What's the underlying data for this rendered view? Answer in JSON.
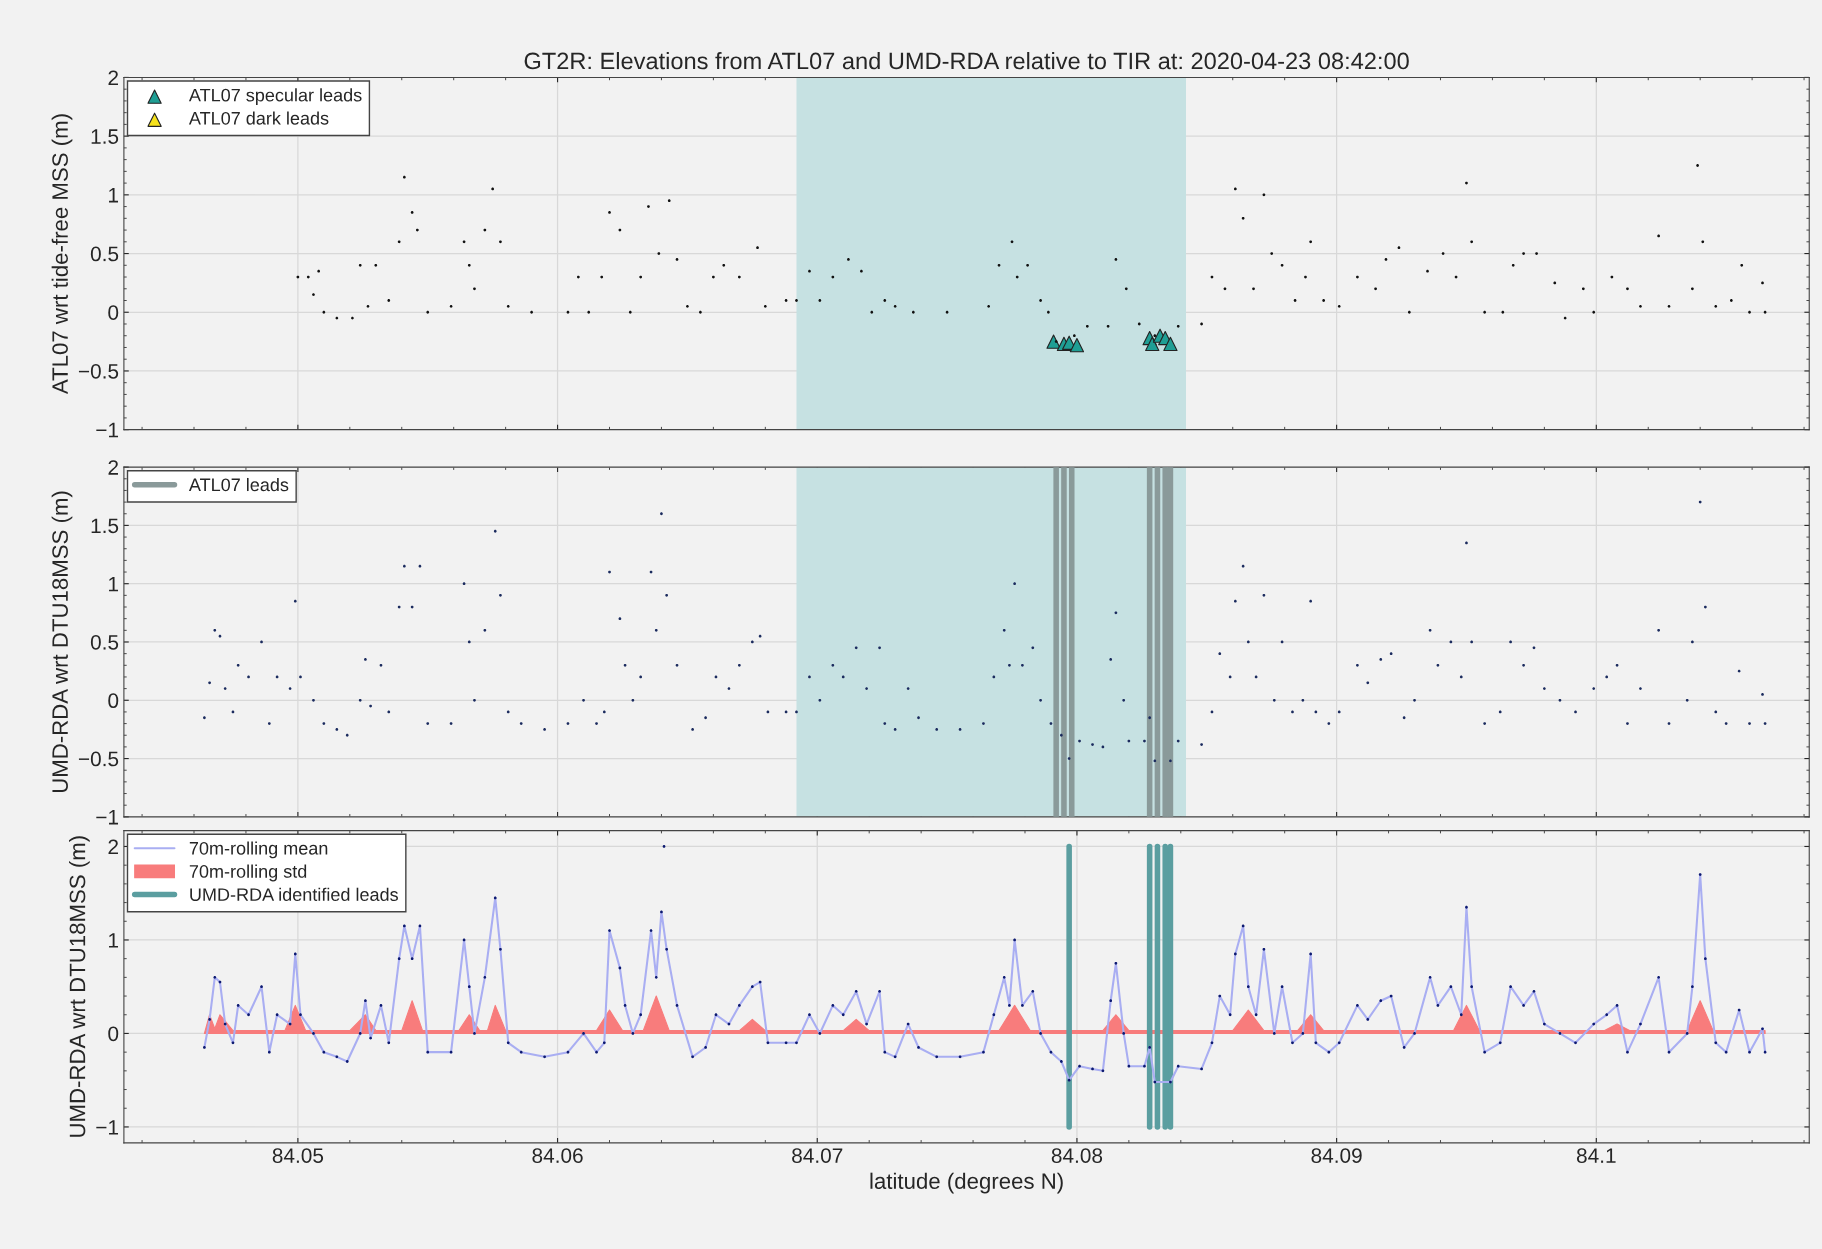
{
  "chart_data": [
    {
      "type": "scatter",
      "title": "GT2R: Elevations from ATL07 and UMD-RDA relative to TIR at: 2020-04-23 08:42:00",
      "ylabel": "ATL07 wrt tide-free MSS (m)",
      "xlim": [
        84.0433,
        84.1082
      ],
      "xticks": [
        84.05,
        84.06,
        84.07,
        84.08,
        84.09,
        84.1
      ],
      "ylim": [
        -1,
        2
      ],
      "yticks": [
        -1,
        -0.5,
        0,
        0.5,
        1,
        1.5,
        2
      ],
      "tick_labels": "y",
      "grid": true,
      "legend": "top left",
      "bands": [
        {
          "axis": "x",
          "from": 84.0692,
          "to": 84.0842,
          "color": "#c6e1e2"
        }
      ],
      "series": [
        {
          "marker": "circle",
          "color": "#111111",
          "x": [
            84.05,
            84.0504,
            84.0506,
            84.0508,
            84.051,
            84.0515,
            84.0521,
            84.0524,
            84.0527,
            84.053,
            84.0535,
            84.0539,
            84.0541,
            84.0544,
            84.0546,
            84.055,
            84.0559,
            84.0564,
            84.0566,
            84.0568,
            84.0572,
            84.0575,
            84.0578,
            84.0581,
            84.059,
            84.0604,
            84.0608,
            84.0612,
            84.0617,
            84.062,
            84.0624,
            84.0628,
            84.0632,
            84.0635,
            84.0639,
            84.0643,
            84.0646,
            84.065,
            84.0655,
            84.066,
            84.0664,
            84.067,
            84.0677,
            84.068,
            84.0688,
            84.0692,
            84.0697,
            84.0701,
            84.0706,
            84.0712,
            84.0717,
            84.0721,
            84.0726,
            84.073,
            84.0737,
            84.075,
            84.0766,
            84.077,
            84.0775,
            84.0777,
            84.0781,
            84.0786,
            84.0789,
            84.0792,
            84.0799,
            84.0804,
            84.0812,
            84.0815,
            84.0819,
            84.0824,
            84.083,
            84.0839,
            84.0848,
            84.0852,
            84.0857,
            84.0861,
            84.0864,
            84.0868,
            84.0872,
            84.0875,
            84.0879,
            84.0884,
            84.0888,
            84.089,
            84.0895,
            84.0901,
            84.0908,
            84.0915,
            84.0919,
            84.0924,
            84.0928,
            84.0935,
            84.0941,
            84.0946,
            84.095,
            84.0952,
            84.0957,
            84.0964,
            84.0968,
            84.0972,
            84.0977,
            84.0984,
            84.0988,
            84.0995,
            84.0999,
            84.1006,
            84.1012,
            84.1017,
            84.1024,
            84.1028,
            84.1037,
            84.1039,
            84.1041,
            84.1046,
            84.1052,
            84.1056,
            84.1059,
            84.1064,
            84.1065
          ],
          "values": [
            0.3,
            0.3,
            0.15,
            0.35,
            0.0,
            -0.05,
            -0.05,
            0.4,
            0.05,
            0.4,
            0.1,
            0.6,
            1.15,
            0.85,
            0.7,
            0.0,
            0.05,
            0.6,
            0.4,
            0.2,
            0.7,
            1.05,
            0.6,
            0.05,
            0.0,
            0.0,
            0.3,
            0.0,
            0.3,
            0.85,
            0.7,
            0.0,
            0.3,
            0.9,
            0.5,
            0.95,
            0.45,
            0.05,
            0.0,
            0.3,
            0.4,
            0.3,
            0.55,
            0.05,
            0.1,
            0.1,
            0.35,
            0.1,
            0.3,
            0.45,
            0.35,
            0.0,
            0.1,
            0.05,
            0.0,
            0.0,
            0.05,
            0.4,
            0.6,
            0.3,
            0.4,
            0.1,
            0.0,
            -0.25,
            -0.2,
            -0.12,
            -0.12,
            0.45,
            0.2,
            -0.1,
            -0.2,
            -0.12,
            -0.1,
            0.3,
            0.2,
            1.05,
            0.8,
            0.2,
            1.0,
            0.5,
            0.4,
            0.1,
            0.3,
            0.6,
            0.1,
            0.05,
            0.3,
            0.2,
            0.45,
            0.55,
            0.0,
            0.35,
            0.5,
            0.3,
            1.1,
            0.6,
            0.0,
            0.0,
            0.4,
            0.5,
            0.5,
            0.25,
            -0.05,
            0.2,
            0.0,
            0.3,
            0.2,
            0.05,
            0.65,
            0.05,
            0.2,
            1.25,
            0.6,
            0.05,
            0.1,
            0.4,
            0.0,
            0.25,
            0.0
          ]
        },
        {
          "marker": "triangle",
          "name": "ATL07 specular leads",
          "color": "#1f9e94",
          "x": [
            84.0791,
            84.0795,
            84.0797,
            84.08,
            84.0828,
            84.0829,
            84.0832,
            84.0834,
            84.0836
          ],
          "values": [
            -0.25,
            -0.27,
            -0.26,
            -0.28,
            -0.22,
            -0.27,
            -0.2,
            -0.22,
            -0.27
          ]
        },
        {
          "marker": "triangle",
          "name": "ATL07 dark leads",
          "color": "#f5e11a"
        }
      ]
    },
    {
      "type": "scatter",
      "ylabel": "UMD-RDA wrt DTU18MSS (m)",
      "xlim": [
        84.0433,
        84.1082
      ],
      "xticks": [
        84.05,
        84.06,
        84.07,
        84.08,
        84.09,
        84.1
      ],
      "ylim": [
        -1,
        2
      ],
      "yticks": [
        -1,
        -0.5,
        0,
        0.5,
        1,
        1.5,
        2
      ],
      "tick_labels": "y",
      "grid": true,
      "legend": "top left",
      "bands": [
        {
          "axis": "x",
          "from": 84.0692,
          "to": 84.0842,
          "color": "#c6e1e2"
        }
      ],
      "series": [
        {
          "type": "line",
          "name": "ATL07 leads",
          "color": "#8a9a9a",
          "line_style": "solid",
          "x": [
            84.0792,
            84.0792
          ],
          "values": [
            -1,
            2
          ]
        },
        {
          "type": "line",
          "color": "#8a9a9a",
          "line_style": "solid",
          "x": [
            84.0795,
            84.0795
          ],
          "values": [
            -1,
            2
          ]
        },
        {
          "type": "line",
          "color": "#8a9a9a",
          "line_style": "solid",
          "x": [
            84.0798,
            84.0798
          ],
          "values": [
            -1,
            2
          ]
        },
        {
          "type": "line",
          "color": "#8a9a9a",
          "line_style": "solid",
          "x": [
            84.0828,
            84.0828
          ],
          "values": [
            -1,
            2
          ]
        },
        {
          "type": "line",
          "color": "#8a9a9a",
          "line_style": "solid",
          "x": [
            84.0831,
            84.0831
          ],
          "values": [
            -1,
            2
          ]
        },
        {
          "type": "line",
          "color": "#8a9a9a",
          "line_style": "solid",
          "x": [
            84.0834,
            84.0834
          ],
          "values": [
            -1,
            2
          ]
        },
        {
          "type": "line",
          "color": "#8a9a9a",
          "line_style": "solid",
          "x": [
            84.0836,
            84.0836
          ],
          "values": [
            -1,
            2
          ]
        },
        {
          "marker": "circle",
          "color": "#1b2b5e",
          "x": [
            84.0464,
            84.0466,
            84.0468,
            84.047,
            84.0472,
            84.0475,
            84.0477,
            84.0481,
            84.0486,
            84.0489,
            84.0492,
            84.0497,
            84.0499,
            84.0501,
            84.0506,
            84.051,
            84.0515,
            84.0519,
            84.0524,
            84.0526,
            84.0528,
            84.0532,
            84.0535,
            84.0539,
            84.0541,
            84.0544,
            84.0547,
            84.055,
            84.0559,
            84.0564,
            84.0566,
            84.0568,
            84.0572,
            84.0576,
            84.0578,
            84.0581,
            84.0586,
            84.0595,
            84.0604,
            84.061,
            84.0615,
            84.0618,
            84.062,
            84.0624,
            84.0626,
            84.0629,
            84.0632,
            84.0636,
            84.0638,
            84.064,
            84.0642,
            84.0646,
            84.0652,
            84.0657,
            84.0661,
            84.0666,
            84.067,
            84.0675,
            84.0678,
            84.0681,
            84.0688,
            84.0692,
            84.0697,
            84.0701,
            84.0706,
            84.071,
            84.0715,
            84.0719,
            84.0724,
            84.0726,
            84.073,
            84.0735,
            84.0739,
            84.0746,
            84.0755,
            84.0764,
            84.0768,
            84.0772,
            84.0774,
            84.0776,
            84.0779,
            84.0783,
            84.0786,
            84.079,
            84.0794,
            84.0797,
            84.0801,
            84.0806,
            84.081,
            84.0813,
            84.0815,
            84.0818,
            84.082,
            84.0826,
            84.0828,
            84.083,
            84.0836,
            84.0839,
            84.0848,
            84.0852,
            84.0855,
            84.0859,
            84.0861,
            84.0864,
            84.0866,
            84.0869,
            84.0872,
            84.0876,
            84.0879,
            84.0883,
            84.0887,
            84.089,
            84.0892,
            84.0897,
            84.0901,
            84.0908,
            84.0912,
            84.0917,
            84.0921,
            84.0926,
            84.093,
            84.0936,
            84.0939,
            84.0944,
            84.0948,
            84.095,
            84.0952,
            84.0957,
            84.0963,
            84.0967,
            84.0972,
            84.0976,
            84.098,
            84.0986,
            84.0992,
            84.0999,
            84.1004,
            84.1008,
            84.1012,
            84.1017,
            84.1024,
            84.1028,
            84.1035,
            84.1037,
            84.104,
            84.1042,
            84.1046,
            84.105,
            84.1055,
            84.1059,
            84.1064,
            84.1065
          ],
          "values": [
            -0.15,
            0.15,
            0.6,
            0.55,
            0.1,
            -0.1,
            0.3,
            0.2,
            0.5,
            -0.2,
            0.2,
            0.1,
            0.85,
            0.2,
            0.0,
            -0.2,
            -0.25,
            -0.3,
            0.0,
            0.35,
            -0.05,
            0.3,
            -0.1,
            0.8,
            1.15,
            0.8,
            1.15,
            -0.2,
            -0.2,
            1.0,
            0.5,
            0.0,
            0.6,
            1.45,
            0.9,
            -0.1,
            -0.2,
            -0.25,
            -0.2,
            0.0,
            -0.2,
            -0.1,
            1.1,
            0.7,
            0.3,
            0.0,
            0.2,
            1.1,
            0.6,
            1.6,
            0.9,
            0.3,
            -0.25,
            -0.15,
            0.2,
            0.1,
            0.3,
            0.5,
            0.55,
            -0.1,
            -0.1,
            -0.1,
            0.2,
            0.0,
            0.3,
            0.2,
            0.45,
            0.1,
            0.45,
            -0.2,
            -0.25,
            0.1,
            -0.15,
            -0.25,
            -0.25,
            -0.2,
            0.2,
            0.6,
            0.3,
            1.0,
            0.3,
            0.45,
            0.0,
            -0.2,
            -0.3,
            -0.5,
            -0.35,
            -0.38,
            -0.4,
            0.35,
            0.75,
            0.0,
            -0.35,
            -0.35,
            -0.15,
            -0.52,
            -0.52,
            -0.35,
            -0.38,
            -0.1,
            0.4,
            0.2,
            0.85,
            1.15,
            0.5,
            0.2,
            0.9,
            0.0,
            0.5,
            -0.1,
            0.0,
            0.85,
            -0.1,
            -0.2,
            -0.1,
            0.3,
            0.15,
            0.35,
            0.4,
            -0.15,
            0.0,
            0.6,
            0.3,
            0.5,
            0.2,
            1.35,
            0.5,
            -0.2,
            -0.1,
            0.5,
            0.3,
            0.45,
            0.1,
            0.0,
            -0.1,
            0.1,
            0.2,
            0.3,
            -0.2,
            0.1,
            0.6,
            -0.2,
            0.0,
            0.5,
            1.7,
            0.8,
            -0.1,
            -0.2,
            0.25,
            -0.2,
            0.05,
            -0.2
          ]
        }
      ]
    },
    {
      "type": "scatter",
      "ylabel": "UMD-RDA wrt DTU18MSS (m)",
      "xlabel": "latitude (degrees N)",
      "xlim": [
        84.0433,
        84.1082
      ],
      "xticks": [
        84.05,
        84.06,
        84.07,
        84.08,
        84.09,
        84.1
      ],
      "ylim": [
        -1.17,
        2.17
      ],
      "yticks": [
        -1,
        0,
        1,
        2
      ],
      "grid": true,
      "legend": "top left",
      "series": [
        {
          "type": "line",
          "name": "70m-rolling mean",
          "color": "#a9aef2",
          "line_style": "solid",
          "x": [
            84.0464,
            84.0466,
            84.0468,
            84.047,
            84.0472,
            84.0475,
            84.0477,
            84.0481,
            84.0486,
            84.0489,
            84.0492,
            84.0497,
            84.0499,
            84.0501,
            84.0506,
            84.051,
            84.0515,
            84.0519,
            84.0524,
            84.0526,
            84.0528,
            84.0532,
            84.0535,
            84.0539,
            84.0541,
            84.0544,
            84.0547,
            84.055,
            84.0559,
            84.0564,
            84.0566,
            84.0568,
            84.0572,
            84.0576,
            84.0578,
            84.0581,
            84.0586,
            84.0595,
            84.0604,
            84.061,
            84.0615,
            84.0618,
            84.062,
            84.0624,
            84.0626,
            84.0629,
            84.0632,
            84.0636,
            84.0638,
            84.064,
            84.0642,
            84.0646,
            84.0652,
            84.0657,
            84.0661,
            84.0666,
            84.067,
            84.0675,
            84.0678,
            84.0681,
            84.0688,
            84.0692,
            84.0697,
            84.0701,
            84.0706,
            84.071,
            84.0715,
            84.0719,
            84.0724,
            84.0726,
            84.073,
            84.0735,
            84.0739,
            84.0746,
            84.0755,
            84.0764,
            84.0768,
            84.0772,
            84.0774,
            84.0776,
            84.0779,
            84.0783,
            84.0786,
            84.079,
            84.0794,
            84.0797,
            84.0801,
            84.0806,
            84.081,
            84.0813,
            84.0815,
            84.0818,
            84.082,
            84.0826,
            84.0828,
            84.083,
            84.0836,
            84.0839,
            84.0848,
            84.0852,
            84.0855,
            84.0859,
            84.0861,
            84.0864,
            84.0866,
            84.0869,
            84.0872,
            84.0876,
            84.0879,
            84.0883,
            84.0887,
            84.089,
            84.0892,
            84.0897,
            84.0901,
            84.0908,
            84.0912,
            84.0917,
            84.0921,
            84.0926,
            84.093,
            84.0936,
            84.0939,
            84.0944,
            84.0948,
            84.095,
            84.0952,
            84.0957,
            84.0963,
            84.0967,
            84.0972,
            84.0976,
            84.098,
            84.0986,
            84.0992,
            84.0999,
            84.1004,
            84.1008,
            84.1012,
            84.1017,
            84.1024,
            84.1028,
            84.1035,
            84.1037,
            84.104,
            84.1042,
            84.1046,
            84.105,
            84.1055,
            84.1059,
            84.1064,
            84.1065
          ],
          "values": [
            -0.15,
            0.15,
            0.6,
            0.55,
            0.1,
            -0.1,
            0.3,
            0.2,
            0.5,
            -0.2,
            0.2,
            0.1,
            0.85,
            0.2,
            0.0,
            -0.2,
            -0.25,
            -0.3,
            0.0,
            0.35,
            -0.05,
            0.3,
            -0.1,
            0.8,
            1.15,
            0.8,
            1.15,
            -0.2,
            -0.2,
            1.0,
            0.5,
            0.0,
            0.6,
            1.45,
            0.9,
            -0.1,
            -0.2,
            -0.25,
            -0.2,
            0.0,
            -0.2,
            -0.1,
            1.1,
            0.7,
            0.3,
            0.0,
            0.2,
            1.1,
            0.6,
            1.3,
            0.9,
            0.3,
            -0.25,
            -0.15,
            0.2,
            0.1,
            0.3,
            0.5,
            0.55,
            -0.1,
            -0.1,
            -0.1,
            0.2,
            0.0,
            0.3,
            0.2,
            0.45,
            0.1,
            0.45,
            -0.2,
            -0.25,
            0.1,
            -0.15,
            -0.25,
            -0.25,
            -0.2,
            0.2,
            0.6,
            0.3,
            1.0,
            0.3,
            0.45,
            0.0,
            -0.2,
            -0.3,
            -0.5,
            -0.35,
            -0.38,
            -0.4,
            0.35,
            0.75,
            0.0,
            -0.35,
            -0.35,
            -0.15,
            -0.52,
            -0.52,
            -0.35,
            -0.38,
            -0.1,
            0.4,
            0.2,
            0.85,
            1.15,
            0.5,
            0.2,
            0.9,
            0.0,
            0.5,
            -0.1,
            0.0,
            0.85,
            -0.1,
            -0.2,
            -0.1,
            0.3,
            0.15,
            0.35,
            0.4,
            -0.15,
            0.0,
            0.6,
            0.3,
            0.5,
            0.2,
            1.35,
            0.5,
            -0.2,
            -0.1,
            0.5,
            0.3,
            0.45,
            0.1,
            0.0,
            -0.1,
            0.1,
            0.2,
            0.3,
            -0.2,
            0.1,
            0.6,
            -0.2,
            0.0,
            0.5,
            1.7,
            0.8,
            -0.1,
            -0.2,
            0.25,
            -0.2,
            0.05,
            -0.2
          ]
        },
        {
          "type": "area",
          "name": "70m-rolling std",
          "color": "#f87c7c",
          "x": [
            84.0464,
            84.0466,
            84.0468,
            84.047,
            84.0475,
            84.0495,
            84.0499,
            84.0503,
            84.052,
            84.0526,
            84.053,
            84.054,
            84.0544,
            84.0548,
            84.0562,
            84.0566,
            84.057,
            84.0573,
            84.0576,
            84.058,
            84.0615,
            84.062,
            84.0625,
            84.0633,
            84.0638,
            84.0643,
            84.067,
            84.0675,
            84.068,
            84.071,
            84.0715,
            84.072,
            84.077,
            84.0776,
            84.0782,
            84.081,
            84.0815,
            84.082,
            84.0855,
            84.086,
            84.0866,
            84.0872,
            84.0885,
            84.089,
            84.0895,
            84.0945,
            84.095,
            84.0955,
            84.1003,
            84.1008,
            84.1013,
            84.1035,
            84.104,
            84.1045,
            84.1065
          ],
          "values": [
            0.0,
            0.2,
            0.05,
            0.2,
            0.03,
            0.03,
            0.3,
            0.03,
            0.03,
            0.2,
            0.03,
            0.03,
            0.35,
            0.03,
            0.03,
            0.2,
            0.03,
            0.03,
            0.3,
            0.03,
            0.03,
            0.25,
            0.03,
            0.03,
            0.4,
            0.03,
            0.03,
            0.15,
            0.03,
            0.03,
            0.15,
            0.03,
            0.03,
            0.3,
            0.03,
            0.03,
            0.2,
            0.03,
            0.03,
            0.03,
            0.25,
            0.03,
            0.03,
            0.2,
            0.03,
            0.03,
            0.3,
            0.03,
            0.03,
            0.1,
            0.03,
            0.03,
            0.35,
            0.03,
            0.03
          ]
        },
        {
          "marker": "circle",
          "color": "#0d1a70",
          "x": [
            84.0464,
            84.0466,
            84.0468,
            84.047,
            84.0472,
            84.0475,
            84.0477,
            84.0481,
            84.0486,
            84.0489,
            84.0492,
            84.0497,
            84.0499,
            84.0501,
            84.0506,
            84.051,
            84.0515,
            84.0519,
            84.0524,
            84.0526,
            84.0528,
            84.0532,
            84.0535,
            84.0539,
            84.0541,
            84.0544,
            84.0547,
            84.055,
            84.0559,
            84.0564,
            84.0566,
            84.0568,
            84.0572,
            84.0576,
            84.0578,
            84.0581,
            84.0586,
            84.0595,
            84.0604,
            84.061,
            84.0615,
            84.0618,
            84.062,
            84.0624,
            84.0626,
            84.0629,
            84.0632,
            84.0636,
            84.0638,
            84.064,
            84.0641,
            84.0642,
            84.0646,
            84.0652,
            84.0657,
            84.0661,
            84.0666,
            84.067,
            84.0675,
            84.0678,
            84.0681,
            84.0688,
            84.0692,
            84.0697,
            84.0701,
            84.0706,
            84.071,
            84.0715,
            84.0719,
            84.0724,
            84.0726,
            84.073,
            84.0735,
            84.0739,
            84.0746,
            84.0755,
            84.0764,
            84.0768,
            84.0772,
            84.0774,
            84.0776,
            84.0779,
            84.0783,
            84.0786,
            84.079,
            84.0794,
            84.0797,
            84.0801,
            84.0806,
            84.081,
            84.0813,
            84.0815,
            84.0818,
            84.082,
            84.0826,
            84.0828,
            84.083,
            84.0836,
            84.0839,
            84.0848,
            84.0852,
            84.0855,
            84.0859,
            84.0861,
            84.0864,
            84.0866,
            84.0869,
            84.0872,
            84.0876,
            84.0879,
            84.0883,
            84.0887,
            84.089,
            84.0892,
            84.0897,
            84.0901,
            84.0908,
            84.0912,
            84.0917,
            84.0921,
            84.0926,
            84.093,
            84.0936,
            84.0939,
            84.0944,
            84.0948,
            84.095,
            84.0952,
            84.0957,
            84.0963,
            84.0967,
            84.0972,
            84.0976,
            84.098,
            84.0986,
            84.0992,
            84.0999,
            84.1004,
            84.1008,
            84.1012,
            84.1017,
            84.1024,
            84.1028,
            84.1035,
            84.1037,
            84.104,
            84.1042,
            84.1046,
            84.105,
            84.1055,
            84.1059,
            84.1064,
            84.1065
          ],
          "values": [
            -0.15,
            0.15,
            0.6,
            0.55,
            0.1,
            -0.1,
            0.3,
            0.2,
            0.5,
            -0.2,
            0.2,
            0.1,
            0.85,
            0.2,
            0.0,
            -0.2,
            -0.25,
            -0.3,
            0.0,
            0.35,
            -0.05,
            0.3,
            -0.1,
            0.8,
            1.15,
            0.8,
            1.15,
            -0.2,
            -0.2,
            1.0,
            0.5,
            0.0,
            0.6,
            1.45,
            0.9,
            -0.1,
            -0.2,
            -0.25,
            -0.2,
            0.0,
            -0.2,
            -0.1,
            1.1,
            0.7,
            0.3,
            0.0,
            0.2,
            1.1,
            0.6,
            1.3,
            2.0,
            0.9,
            0.3,
            -0.25,
            -0.15,
            0.2,
            0.1,
            0.3,
            0.5,
            0.55,
            -0.1,
            -0.1,
            -0.1,
            0.2,
            0.0,
            0.3,
            0.2,
            0.45,
            0.1,
            0.45,
            -0.2,
            -0.25,
            0.1,
            -0.15,
            -0.25,
            -0.25,
            -0.2,
            0.2,
            0.6,
            0.3,
            1.0,
            0.3,
            0.45,
            0.0,
            -0.2,
            -0.3,
            -0.5,
            -0.35,
            -0.38,
            -0.4,
            0.35,
            0.75,
            0.0,
            -0.35,
            -0.35,
            -0.15,
            -0.52,
            -0.52,
            -0.35,
            -0.38,
            -0.1,
            0.4,
            0.2,
            0.85,
            1.15,
            0.5,
            0.2,
            0.9,
            0.0,
            0.5,
            -0.1,
            0.0,
            0.85,
            -0.1,
            -0.2,
            -0.1,
            0.3,
            0.15,
            0.35,
            0.4,
            -0.15,
            0.0,
            0.6,
            0.3,
            0.5,
            0.2,
            1.35,
            0.5,
            -0.2,
            -0.1,
            0.5,
            0.3,
            0.45,
            0.1,
            0.0,
            -0.1,
            0.1,
            0.2,
            0.3,
            -0.2,
            0.1,
            0.6,
            -0.2,
            0.0,
            0.5,
            1.7,
            0.8,
            -0.1,
            -0.2,
            0.25,
            -0.2,
            0.05,
            -0.2
          ]
        },
        {
          "type": "line",
          "name": "UMD-RDA identified leads",
          "color": "#5b9ea0",
          "line_style": "solid",
          "x": [
            84.0797,
            84.0797
          ],
          "values": [
            -1,
            2
          ]
        },
        {
          "type": "line",
          "color": "#5b9ea0",
          "line_style": "solid",
          "x": [
            84.0828,
            84.0828
          ],
          "values": [
            -1,
            2
          ]
        },
        {
          "type": "line",
          "color": "#5b9ea0",
          "line_style": "solid",
          "x": [
            84.0831,
            84.0831
          ],
          "values": [
            -1,
            2
          ]
        },
        {
          "type": "line",
          "color": "#5b9ea0",
          "line_style": "solid",
          "x": [
            84.0834,
            84.0834
          ],
          "values": [
            -1,
            2
          ]
        },
        {
          "type": "line",
          "color": "#5b9ea0",
          "line_style": "solid",
          "x": [
            84.0836,
            84.0836
          ],
          "values": [
            -1,
            2
          ]
        }
      ]
    }
  ]
}
